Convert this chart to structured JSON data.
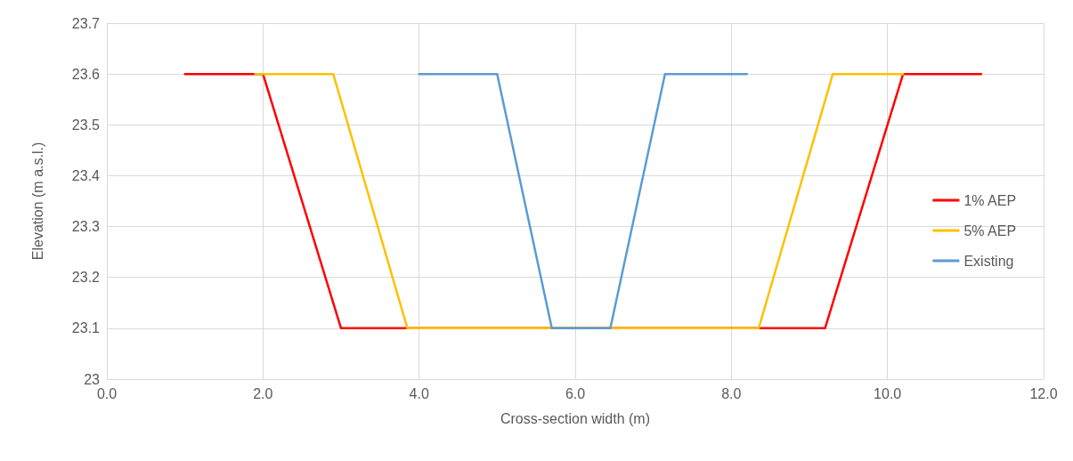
{
  "chart_data": {
    "type": "line",
    "xlabel": "Cross-section width (m)",
    "ylabel": "Elevation (m a.s.l.)",
    "xlim": [
      0,
      12
    ],
    "xticks": [
      {
        "value": 0,
        "label": "0.0"
      },
      {
        "value": 2,
        "label": "2.0"
      },
      {
        "value": 4,
        "label": "4.0"
      },
      {
        "value": 6,
        "label": "6.0"
      },
      {
        "value": 8,
        "label": "8.0"
      },
      {
        "value": 10,
        "label": "10.0"
      },
      {
        "value": 12,
        "label": "12.0"
      }
    ],
    "ylim": [
      23,
      23.7
    ],
    "yticks": [
      23,
      23.1,
      23.2,
      23.3,
      23.4,
      23.5,
      23.6,
      23.7
    ],
    "grid": true,
    "legend": "right",
    "marker": "none",
    "line_style": "solid",
    "series": [
      {
        "name": "1% AEP",
        "color": "#ff0000",
        "x": [
          1.0,
          2.0,
          3.0,
          9.2,
          10.2,
          11.2
        ],
        "values": [
          23.6,
          23.6,
          23.1,
          23.1,
          23.6,
          23.6
        ]
      },
      {
        "name": "5% AEP",
        "color": "#ffc000",
        "x": [
          1.9,
          2.9,
          3.85,
          8.35,
          9.3,
          10.2
        ],
        "values": [
          23.6,
          23.6,
          23.1,
          23.1,
          23.6,
          23.6
        ]
      },
      {
        "name": "Existing",
        "color": "#5b9bd5",
        "x": [
          4.0,
          5.0,
          5.7,
          6.45,
          7.15,
          8.2
        ],
        "values": [
          23.6,
          23.6,
          23.1,
          23.1,
          23.6,
          23.6
        ]
      }
    ]
  }
}
